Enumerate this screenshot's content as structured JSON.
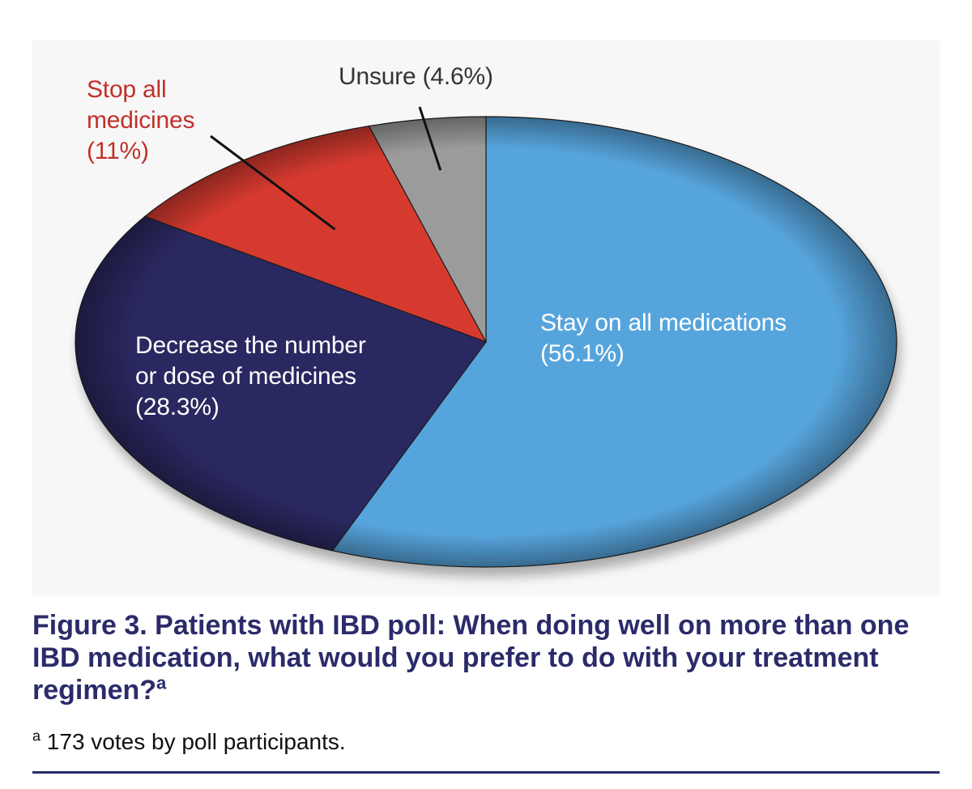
{
  "chart_data": {
    "type": "pie",
    "slices": [
      {
        "label": "Stay on all medications",
        "value": 56.1,
        "value_text": "(56.1%)",
        "color": "#56a4dc"
      },
      {
        "label": "Decrease the number or dose of medicines",
        "value": 28.3,
        "value_text": "(28.3%)",
        "color": "#2a2860"
      },
      {
        "label": "Stop all medicines",
        "value": 11,
        "value_text": "(11%)",
        "color": "#d63a2f"
      },
      {
        "label": "Unsure",
        "value": 4.6,
        "value_text": "(4.6%)",
        "color": "#9b9b9b"
      }
    ],
    "labels": {
      "stay": [
        "Stay on all medications",
        "(56.1%)"
      ],
      "decrease": [
        "Decrease the number",
        "or dose of medicines",
        "(28.3%)"
      ],
      "stop": [
        "Stop all",
        "medicines",
        "(11%)"
      ],
      "unsure": [
        "Unsure (4.6%)"
      ]
    },
    "label_colors": {
      "stay": "#ffffff",
      "decrease": "#ffffff",
      "stop": "#c2302a",
      "unsure": "#333333"
    }
  },
  "caption": {
    "text": "Figure 3. Patients with IBD poll: When doing well on more than one IBD medication, what would you prefer to do with your treatment regimen?",
    "marker": "a"
  },
  "footnote": {
    "marker": "a",
    "text": " 173 votes by poll participants."
  }
}
